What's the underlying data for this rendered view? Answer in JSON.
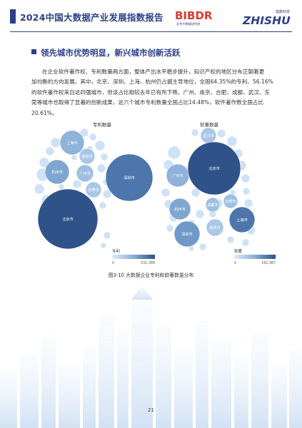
{
  "header": {
    "title": "2024中国大数据产业发展指数报告",
    "logo1_text": "BIBDR",
    "logo1_sub": "北京大数据研究院",
    "logo2_text": "ZHISHU",
    "logo2_sub": "指数科技"
  },
  "section": {
    "title": "领先城市优势明显，新兴城市创新活跃"
  },
  "paragraph": {
    "lines": [
      "在企业软件著作权、专利数量两方面，整体产出水平稳步提升，知识产权的地区分布正朝着更",
      "加均衡的方向发展。其中，北京、深圳、上海、杭州仍占据主导地位，全国64.35%的专利、56.16%",
      "的软件著作权来自这四强城市，但该占比相较去年已有所下降。广州、南京、合肥、成都、武汉、东",
      "莞等城市也取得了显著的创新成果，这六个城市专利数量全国占比14.48%，软件著作数全国占比",
      "20.61%。"
    ]
  },
  "charts": [
    {
      "title": "专利数量",
      "legend_title": "专利",
      "legend_min": "0",
      "legend_max": "531,389",
      "labels": [
        "上海市",
        "南京市",
        "杭州市",
        "广州市",
        "东莞市",
        "深圳市",
        "北京市"
      ]
    },
    {
      "title": "软著数量",
      "legend_title": "软著",
      "legend_min": "0",
      "legend_max": "162,387",
      "labels": [
        "武汉市",
        "广州市",
        "北京市",
        "杭州市",
        "成都市",
        "合肥市",
        "上海市",
        "南京市",
        "深圳市"
      ]
    }
  ],
  "figure": {
    "caption": "图3-10 大数据企业专利和软著数量分布"
  },
  "page": {
    "number": "21"
  },
  "colors": {
    "brand": "#2c3f86",
    "bubble_dark": "#33578f",
    "bubble_mid": "#6f9ac7",
    "bubble_light": "#cfe2f5",
    "logo_red": "#d73a2e"
  }
}
